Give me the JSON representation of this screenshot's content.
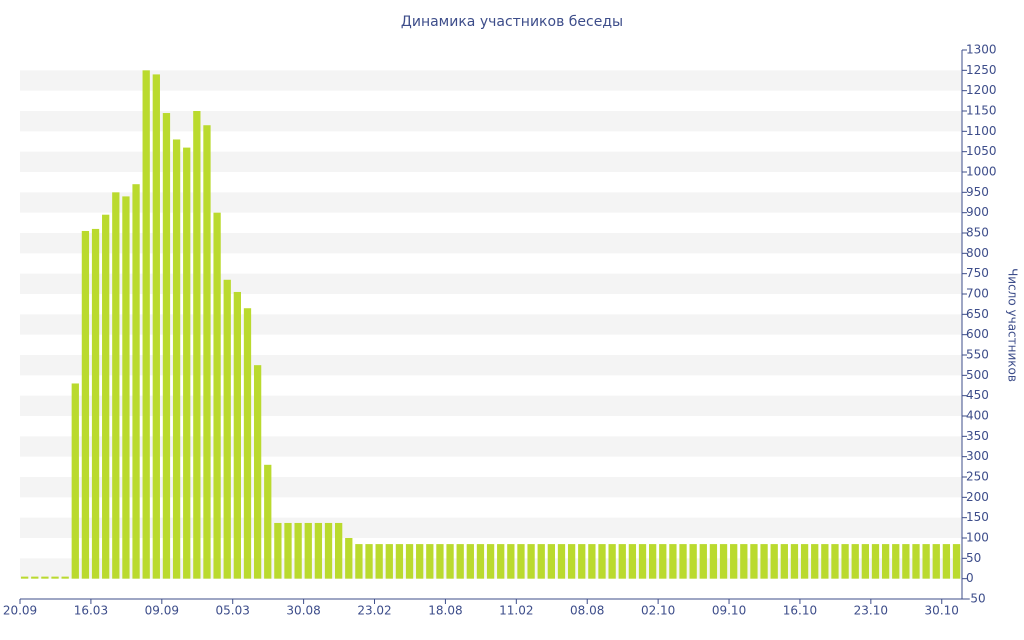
{
  "chart_data": {
    "type": "bar",
    "title": "Динамика участников беседы",
    "y_label": "Число участников",
    "color": "#bada2e",
    "grid": "bands",
    "categories": [
      "20.09",
      null,
      null,
      null,
      null,
      null,
      null,
      "16.03",
      null,
      null,
      null,
      null,
      null,
      null,
      "09.09",
      null,
      null,
      null,
      null,
      null,
      null,
      "05.03",
      null,
      null,
      null,
      null,
      null,
      null,
      "30.08",
      null,
      null,
      null,
      null,
      null,
      null,
      "23.02",
      null,
      null,
      null,
      null,
      null,
      null,
      "18.08",
      null,
      null,
      null,
      null,
      null,
      null,
      "11.02",
      null,
      null,
      null,
      null,
      null,
      null,
      "08.08",
      null,
      null,
      null,
      null,
      null,
      null,
      "02.10",
      null,
      null,
      null,
      null,
      null,
      null,
      "09.10",
      null,
      null,
      null,
      null,
      null,
      null,
      "16.10",
      null,
      null,
      null,
      null,
      null,
      null,
      "23.10",
      null,
      null,
      null,
      null,
      null,
      null,
      "30.10",
      null
    ],
    "values": [
      5,
      5,
      5,
      5,
      5,
      480,
      855,
      860,
      895,
      950,
      940,
      970,
      1250,
      1240,
      1145,
      1080,
      1060,
      1150,
      1115,
      900,
      735,
      705,
      665,
      525,
      280,
      137,
      137,
      137,
      137,
      137,
      137,
      137,
      100,
      85,
      85,
      85,
      85,
      85,
      85,
      85,
      85,
      85,
      85,
      85,
      85,
      85,
      85,
      85,
      85,
      85,
      85,
      85,
      85,
      85,
      85,
      85,
      85,
      85,
      85,
      85,
      85,
      85,
      85,
      85,
      85,
      85,
      85,
      85,
      85,
      85,
      85,
      85,
      85,
      85,
      85,
      85,
      85,
      85,
      85,
      85,
      85,
      85,
      85,
      85,
      85,
      85,
      85,
      85,
      85,
      85,
      85,
      85,
      85
    ],
    "ylim": [
      -50,
      1300
    ],
    "yticks": [
      -50,
      0,
      50,
      100,
      150,
      200,
      250,
      300,
      350,
      400,
      450,
      500,
      550,
      600,
      650,
      700,
      750,
      800,
      850,
      900,
      950,
      1000,
      1050,
      1100,
      1150,
      1200,
      1250,
      1300
    ]
  }
}
